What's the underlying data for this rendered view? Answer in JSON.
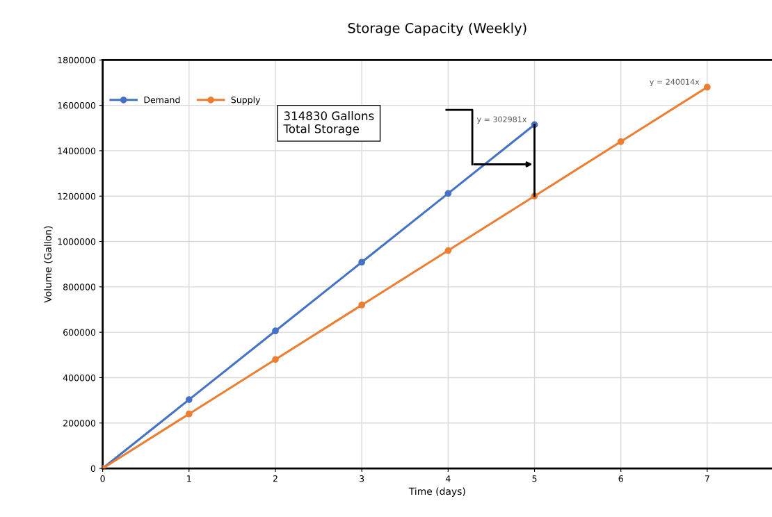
{
  "chart_data": {
    "type": "line",
    "title": "Storage Capacity (Weekly)",
    "xlabel": "Time (days)",
    "ylabel": "Volume (Gallon)",
    "series": [
      {
        "name": "Demand",
        "color": "#4472c4",
        "x": [
          0,
          1,
          2,
          3,
          4,
          5
        ],
        "values": [
          0,
          302981,
          605962,
          908943,
          1211924,
          1514905
        ]
      },
      {
        "name": "Supply",
        "color": "#ed7d31",
        "x": [
          0,
          1,
          2,
          3,
          4,
          5,
          6,
          7
        ],
        "values": [
          0,
          240014,
          480028,
          720042,
          960056,
          1200070,
          1440084,
          1680098
        ]
      }
    ],
    "annotations": [
      {
        "text": "y = 302981x",
        "x": 5,
        "y": 1514905
      },
      {
        "text": "y = 240014x",
        "x": 7,
        "y": 1680098
      },
      "314830 Gallons\nTotal Storage"
    ],
    "xlim": [
      0,
      7.75
    ],
    "xticks": [
      0,
      1,
      2,
      3,
      4,
      5,
      6,
      7
    ],
    "ylim": [
      0,
      1800000
    ],
    "yticks": [
      0,
      200000,
      400000,
      600000,
      800000,
      1000000,
      1200000,
      1400000,
      1600000,
      1800000
    ],
    "grid": true,
    "legend": "top left",
    "marker": "circle",
    "line_style": "solid"
  }
}
